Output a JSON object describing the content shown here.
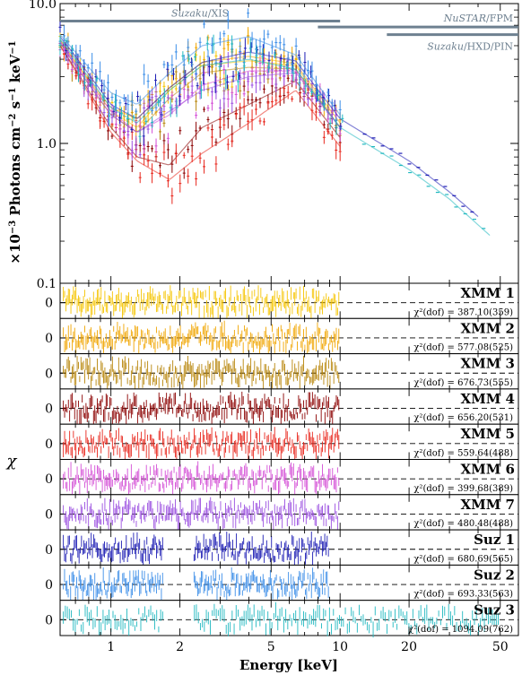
{
  "chart_data": {
    "type": "scatter",
    "xscale": "log",
    "xlabel": "Energy [keV]",
    "x_ticks": [
      1,
      2,
      5,
      10,
      20,
      50
    ],
    "x_tick_labels": [
      "1",
      "2",
      "5",
      "10",
      "20",
      "50"
    ],
    "xlim": [
      0.6,
      60
    ],
    "top": {
      "yscale": "log",
      "ylabel_prefix": "×10",
      "ylabel_exp": "−3",
      "ylabel_main": " Photons cm",
      "ylabel_exp2": "−2",
      "ylabel_mid": " s",
      "ylabel_exp3": "−1",
      "ylabel_end": " keV",
      "ylabel_exp4": "−1",
      "ylim": [
        0.1,
        10
      ],
      "y_ticks": [
        0.1,
        1.0,
        10.0
      ],
      "y_tick_labels": [
        "0.1",
        "1.0",
        "10.0"
      ],
      "instruments": [
        {
          "label_it": "Suzaku",
          "label_rest": "/XIS",
          "x": [
            0.6,
            10
          ],
          "y": 7.5
        },
        {
          "label_it": "NuSTAR",
          "label_rest": "/FPM",
          "x": [
            8,
            60
          ],
          "y": 6.8
        },
        {
          "label_it": "Suzaku",
          "label_rest": "/HXD/PIN",
          "x": [
            16,
            60
          ],
          "y": 6.0
        }
      ],
      "series": [
        {
          "color": "#f5c400",
          "anchors": [
            [
              0.6,
              5.5
            ],
            [
              0.7,
              3.8
            ],
            [
              1.0,
              1.7
            ],
            [
              1.3,
              1.3
            ],
            [
              1.8,
              2.4
            ],
            [
              2.5,
              3.6
            ],
            [
              4.0,
              3.9
            ],
            [
              6.4,
              3.6
            ],
            [
              10,
              1.3
            ]
          ]
        },
        {
          "color": "#f0a500",
          "anchors": [
            [
              0.6,
              5.5
            ],
            [
              0.7,
              3.8
            ],
            [
              1.0,
              1.8
            ],
            [
              1.3,
              1.5
            ],
            [
              1.8,
              2.5
            ],
            [
              2.5,
              3.8
            ],
            [
              4.0,
              4.2
            ],
            [
              6.4,
              3.7
            ],
            [
              10,
              1.4
            ]
          ]
        },
        {
          "color": "#b8860b",
          "anchors": [
            [
              0.6,
              5.2
            ],
            [
              0.7,
              3.6
            ],
            [
              1.0,
              1.6
            ],
            [
              1.3,
              1.2
            ],
            [
              1.8,
              2.1
            ],
            [
              2.5,
              3.2
            ],
            [
              4.0,
              3.5
            ],
            [
              6.4,
              3.4
            ],
            [
              10,
              1.3
            ]
          ]
        },
        {
          "color": "#8b0000",
          "anchors": [
            [
              0.6,
              5.0
            ],
            [
              0.7,
              3.4
            ],
            [
              1.0,
              1.3
            ],
            [
              1.3,
              0.8
            ],
            [
              1.8,
              0.7
            ],
            [
              2.5,
              1.3
            ],
            [
              4.0,
              1.9
            ],
            [
              6.4,
              2.8
            ],
            [
              10,
              1.1
            ]
          ]
        },
        {
          "color": "#e8261c",
          "anchors": [
            [
              0.6,
              5.0
            ],
            [
              0.7,
              3.3
            ],
            [
              1.0,
              1.2
            ],
            [
              1.3,
              0.75
            ],
            [
              1.8,
              0.55
            ],
            [
              2.5,
              0.85
            ],
            [
              4.0,
              1.4
            ],
            [
              6.4,
              2.4
            ],
            [
              10,
              0.95
            ]
          ]
        },
        {
          "color": "#d44fd6",
          "anchors": [
            [
              0.6,
              5.4
            ],
            [
              0.7,
              3.7
            ],
            [
              1.0,
              1.7
            ],
            [
              1.3,
              1.2
            ],
            [
              1.8,
              1.6
            ],
            [
              2.5,
              2.6
            ],
            [
              4.0,
              3.3
            ],
            [
              6.4,
              3.3
            ],
            [
              10,
              1.3
            ]
          ]
        },
        {
          "color": "#9b4fe0",
          "anchors": [
            [
              0.6,
              5.3
            ],
            [
              0.7,
              3.6
            ],
            [
              1.0,
              1.6
            ],
            [
              1.3,
              1.2
            ],
            [
              1.8,
              1.7
            ],
            [
              2.5,
              2.4
            ],
            [
              4.0,
              3.0
            ],
            [
              6.4,
              3.2
            ],
            [
              10,
              1.3
            ]
          ]
        },
        {
          "color": "#1c1cb4",
          "anchors": [
            [
              0.6,
              5.8
            ],
            [
              0.7,
              4.2
            ],
            [
              1.0,
              1.9
            ],
            [
              1.3,
              1.5
            ],
            [
              1.8,
              2.5
            ],
            [
              2.5,
              3.8
            ],
            [
              4.0,
              4.5
            ],
            [
              6.4,
              3.9
            ],
            [
              10,
              1.5
            ],
            [
              20,
              0.75
            ],
            [
              30,
              0.45
            ],
            [
              40,
              0.3
            ]
          ]
        },
        {
          "color": "#3c8ee8",
          "anchors": [
            [
              0.6,
              6.0
            ],
            [
              0.7,
              4.5
            ],
            [
              1.0,
              2.3
            ],
            [
              1.3,
              1.9
            ],
            [
              1.8,
              3.2
            ],
            [
              2.5,
              5.0
            ],
            [
              4.0,
              5.8
            ],
            [
              6.4,
              4.3
            ],
            [
              10,
              1.6
            ]
          ]
        },
        {
          "color": "#20b8c0",
          "anchors": [
            [
              0.6,
              5.6
            ],
            [
              0.7,
              4.0
            ],
            [
              1.0,
              1.8
            ],
            [
              1.3,
              1.4
            ],
            [
              1.8,
              2.4
            ],
            [
              2.5,
              3.6
            ],
            [
              4.0,
              4.0
            ],
            [
              6.4,
              3.4
            ],
            [
              10,
              1.3
            ],
            [
              20,
              0.65
            ],
            [
              30,
              0.4
            ],
            [
              45,
              0.22
            ]
          ]
        }
      ]
    },
    "residual_panels": [
      {
        "name": "XMM 1",
        "stat": "χ²(dof) = 387.10(359)",
        "color": "#f5c400",
        "x_max": 10
      },
      {
        "name": "XMM 2",
        "stat": "χ²(dof) = 577.08(525)",
        "color": "#f0a500",
        "x_max": 10
      },
      {
        "name": "XMM 3",
        "stat": "χ²(dof) = 676.73(555)",
        "color": "#b8860b",
        "x_max": 10
      },
      {
        "name": "XMM 4",
        "stat": "χ²(dof) = 656.20(531)",
        "color": "#8b0000",
        "x_max": 10
      },
      {
        "name": "XMM 5",
        "stat": "χ²(dof) = 559.64(488)",
        "color": "#e8261c",
        "x_max": 10
      },
      {
        "name": "XMM 6",
        "stat": "χ²(dof) = 399.68(389)",
        "color": "#d44fd6",
        "x_max": 10
      },
      {
        "name": "XMM 7",
        "stat": "χ²(dof) = 480.48(488)",
        "color": "#9b4fe0",
        "x_max": 10
      },
      {
        "name": "Suz 1",
        "stat": "χ²(dof) = 680.69(565)",
        "color": "#1c1cb4",
        "x_max": 9
      },
      {
        "name": "Suz 2",
        "stat": "χ²(dof) = 693.33(563)",
        "color": "#3c8ee8",
        "x_max": 9
      },
      {
        "name": "Suz 3",
        "stat": "χ²(dof) = 1094.09(762)",
        "color": "#20b8c0",
        "x_max": 50
      }
    ],
    "residual_ylabel": "χ",
    "residual_ytick": "0",
    "instrument_line_color": "#6e8090",
    "model_line_color": "#8a9aa8"
  }
}
